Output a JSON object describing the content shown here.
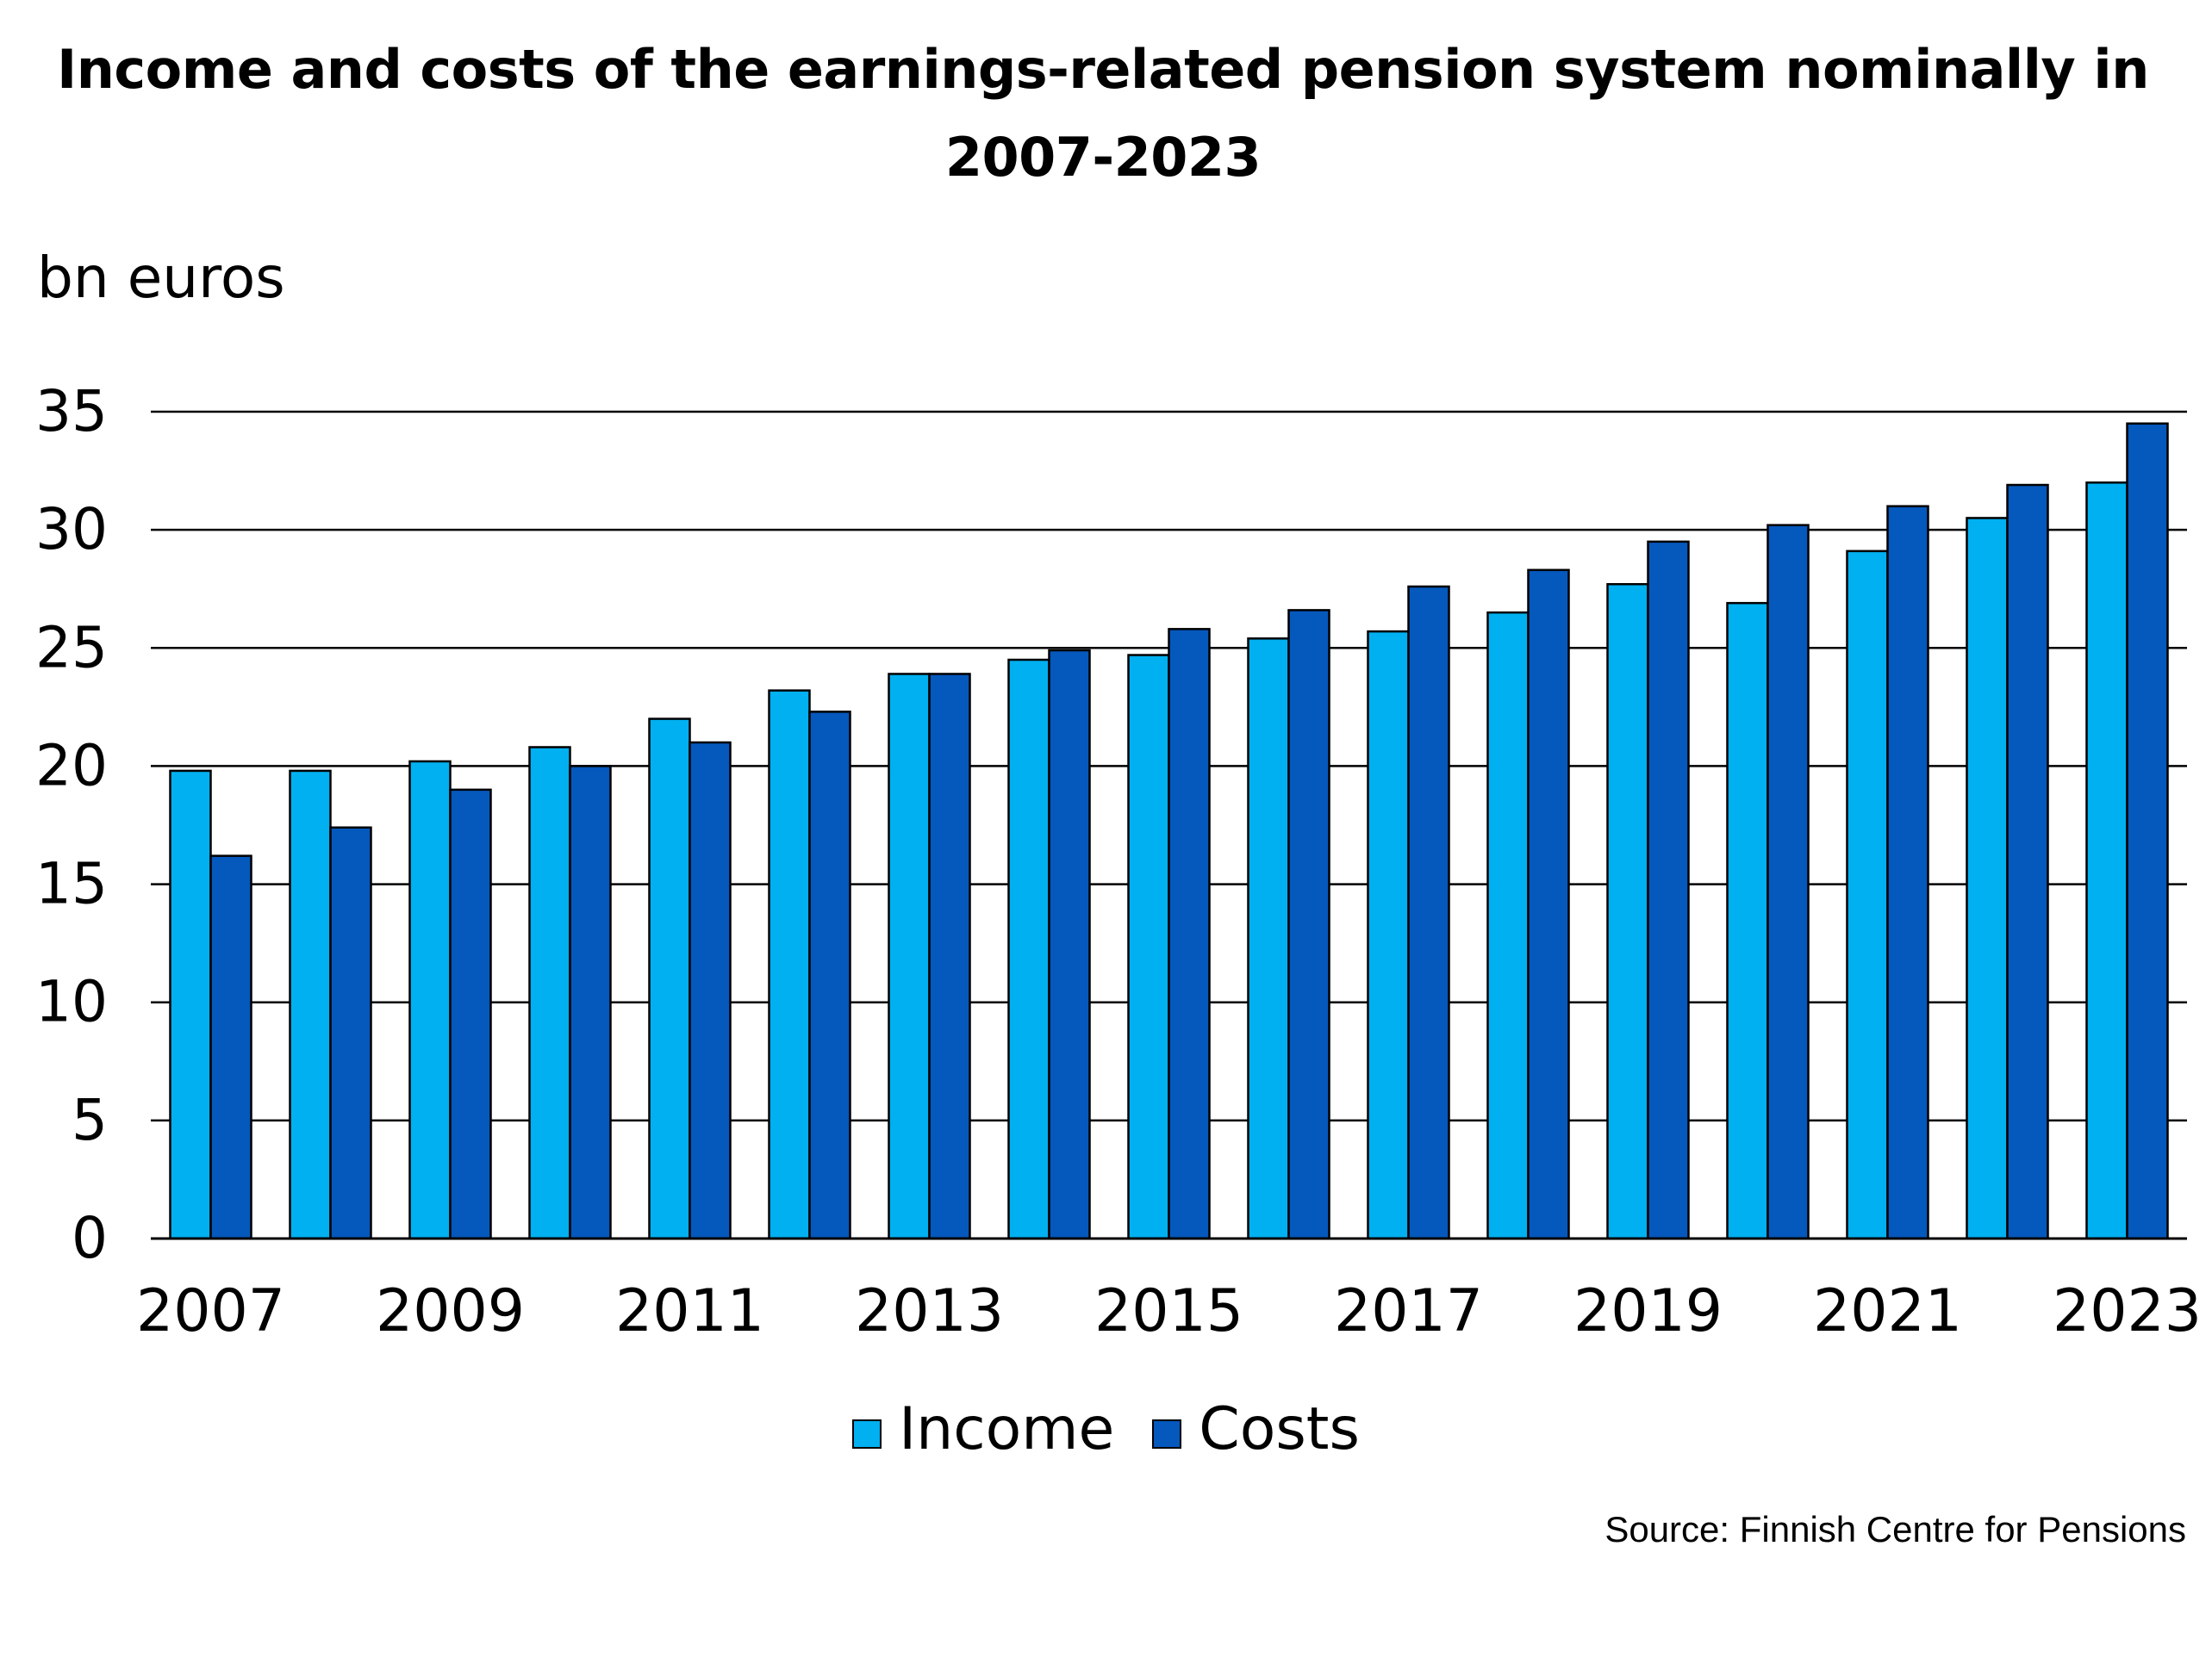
{
  "chart_data": {
    "type": "bar",
    "title": "Income and costs of the earnings-related pension system nominally in 2007-2023",
    "ylabel": "bn euros",
    "xlabel": "",
    "ylim": [
      0,
      35
    ],
    "yticks": [
      "0",
      "5",
      "10",
      "15",
      "20",
      "25",
      "30",
      "35"
    ],
    "categories": [
      "2007",
      "2008",
      "2009",
      "2010",
      "2011",
      "2012",
      "2013",
      "2014",
      "2015",
      "2016",
      "2017",
      "2018",
      "2019",
      "2020",
      "2021",
      "2022",
      "2023"
    ],
    "xtick_labels": [
      "2007",
      "",
      "2009",
      "",
      "2011",
      "",
      "2013",
      "",
      "2015",
      "",
      "2017",
      "",
      "2019",
      "",
      "2021",
      "",
      "2023"
    ],
    "series": [
      {
        "name": "Income",
        "color": "#00B0F0",
        "values": [
          19.8,
          19.8,
          20.2,
          20.8,
          22.0,
          23.2,
          23.9,
          24.5,
          24.7,
          25.4,
          25.7,
          26.5,
          27.7,
          26.9,
          29.1,
          30.5,
          32.0
        ]
      },
      {
        "name": "Costs",
        "color": "#0558BC",
        "values": [
          16.2,
          17.4,
          19.0,
          20.0,
          21.0,
          22.3,
          23.9,
          24.9,
          25.8,
          26.6,
          27.6,
          28.3,
          29.5,
          30.2,
          31.0,
          31.9,
          34.5
        ]
      }
    ],
    "grid": true,
    "legend_position": "bottom-center",
    "source": "Source: Finnish Centre for Pensions"
  }
}
